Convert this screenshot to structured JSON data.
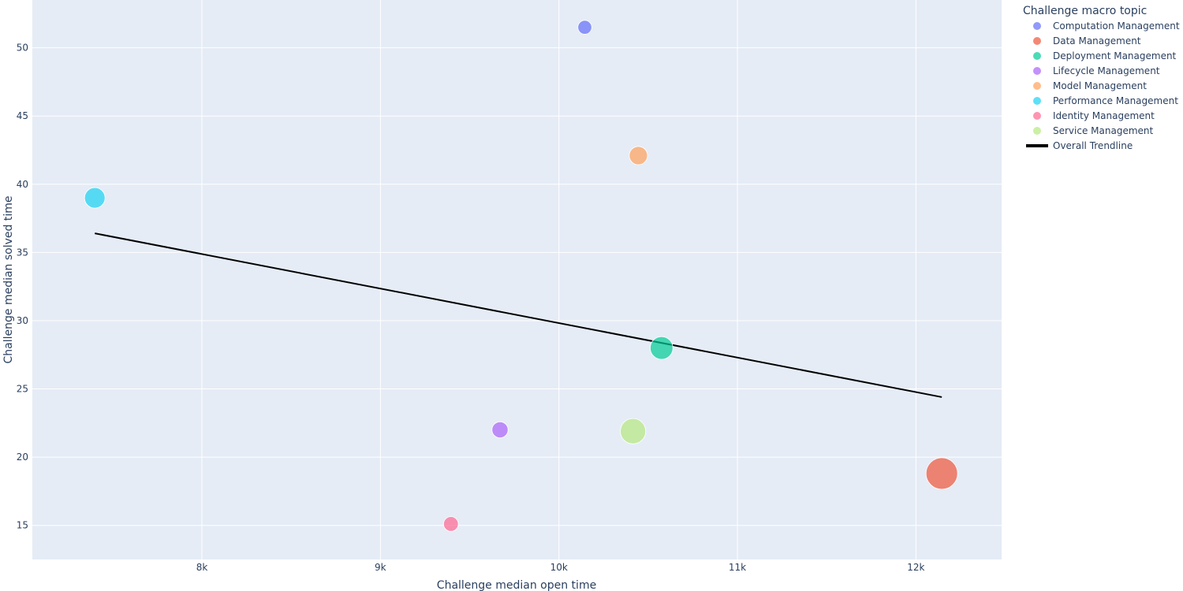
{
  "chart_data": {
    "type": "scatter",
    "xlabel": "Challenge median open time",
    "ylabel": "Challenge median solved time",
    "xlim": [
      7050,
      12480
    ],
    "ylim": [
      12.5,
      53.5
    ],
    "xticks": [
      8000,
      9000,
      10000,
      11000,
      12000
    ],
    "xtick_labels": [
      "8k",
      "9k",
      "10k",
      "11k",
      "12k"
    ],
    "yticks": [
      15,
      20,
      25,
      30,
      35,
      40,
      45,
      50
    ],
    "ytick_labels": [
      "15",
      "20",
      "25",
      "30",
      "35",
      "40",
      "45",
      "50"
    ],
    "grid": true,
    "plot_background": "#e5ecf6",
    "legend": {
      "title": "Challenge macro topic",
      "placement": "right"
    },
    "series": [
      {
        "name": "Computation Management",
        "color": "#636efa",
        "x": 10145,
        "y": 51.5,
        "size": 1
      },
      {
        "name": "Data Management",
        "color": "#ef553b",
        "x": 12145,
        "y": 18.8,
        "size": 5
      },
      {
        "name": "Deployment Management",
        "color": "#00cc96",
        "x": 10575,
        "y": 28.0,
        "size": 3
      },
      {
        "name": "Lifecycle Management",
        "color": "#ab63fa",
        "x": 9670,
        "y": 22.0,
        "size": 1.5
      },
      {
        "name": "Model Management",
        "color": "#ffa15a",
        "x": 10445,
        "y": 42.1,
        "size": 2
      },
      {
        "name": "Performance Management",
        "color": "#19d3f3",
        "x": 7400,
        "y": 39.0,
        "size": 2.5
      },
      {
        "name": "Identity Management",
        "color": "#ff6692",
        "x": 9395,
        "y": 15.1,
        "size": 1.2
      },
      {
        "name": "Service Management",
        "color": "#b6e880",
        "x": 10415,
        "y": 21.9,
        "size": 3.6
      }
    ],
    "trendline": {
      "name": "Overall Trendline",
      "color": "#000000",
      "x": [
        7400,
        12145
      ],
      "y": [
        36.4,
        24.4
      ]
    }
  }
}
